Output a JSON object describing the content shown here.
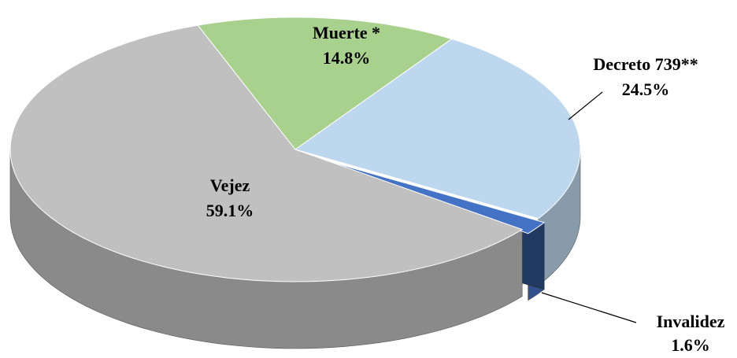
{
  "chart_data": {
    "type": "pie",
    "categories": [
      "Muerte *",
      "Decreto 739**",
      "Invalidez",
      "Vejez"
    ],
    "values": [
      14.8,
      24.5,
      1.6,
      59.1
    ],
    "value_labels": [
      "14.8%",
      "24.5%",
      "1.6%",
      "59.1%"
    ],
    "colors": [
      "#a9d18e",
      "#bdd7ee",
      "#4472c4",
      "#c0c0c0"
    ]
  }
}
